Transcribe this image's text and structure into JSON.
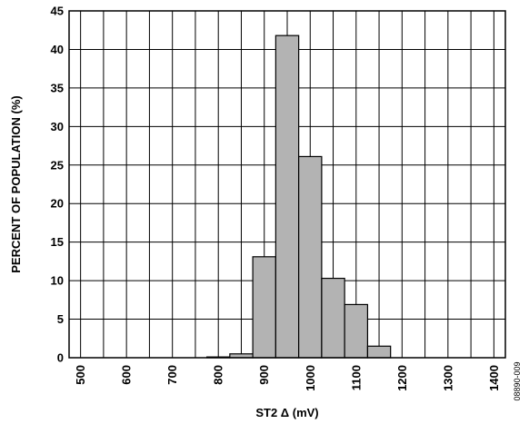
{
  "chart_data": {
    "type": "bar",
    "title": "",
    "xlabel": "ST2 Δ (mV)",
    "ylabel": "PERCENT OF POPULATION (%)",
    "xlim": [
      475,
      1425
    ],
    "ylim": [
      0,
      45
    ],
    "bin_width": 50,
    "x_ticks": [
      "500",
      "600",
      "700",
      "800",
      "900",
      "1000",
      "1100",
      "1200",
      "1300",
      "1400"
    ],
    "y_ticks": [
      "0",
      "5",
      "10",
      "15",
      "20",
      "25",
      "30",
      "35",
      "40",
      "45"
    ],
    "grid": true,
    "bar_color": "#b3b3b3",
    "bins": [
      {
        "x": 800,
        "value": 0.1
      },
      {
        "x": 850,
        "value": 0.5
      },
      {
        "x": 900,
        "value": 13.1
      },
      {
        "x": 950,
        "value": 41.8
      },
      {
        "x": 1000,
        "value": 26.1
      },
      {
        "x": 1050,
        "value": 10.3
      },
      {
        "x": 1100,
        "value": 6.9
      },
      {
        "x": 1150,
        "value": 1.5
      }
    ],
    "figure_id": "08890-009"
  }
}
